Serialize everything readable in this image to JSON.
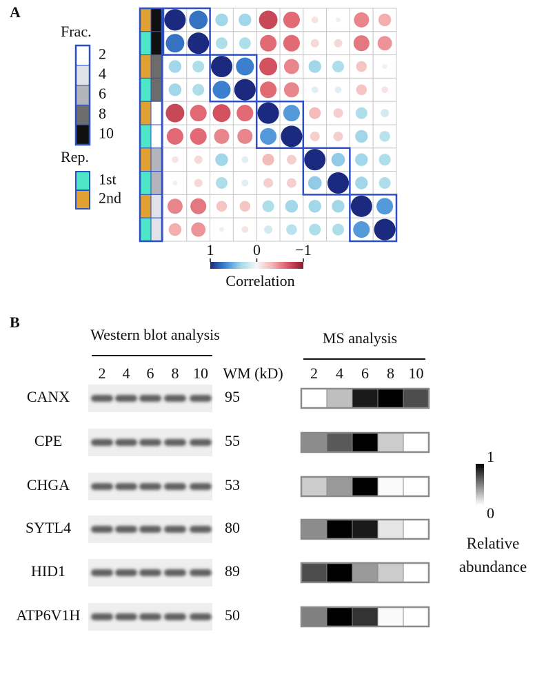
{
  "panels": {
    "a": "A",
    "b": "B"
  },
  "chart_data": [
    {
      "type": "corrplot",
      "matrix": [
        [
          1,
          0.75,
          0.35,
          0.35,
          -0.75,
          -0.6,
          -0.1,
          -0.05,
          -0.5,
          -0.35
        ],
        [
          0.75,
          1,
          0.3,
          0.3,
          -0.6,
          -0.6,
          -0.15,
          -0.15,
          -0.55,
          -0.45
        ],
        [
          0.35,
          0.3,
          1,
          0.7,
          -0.7,
          -0.5,
          0.35,
          0.3,
          -0.25,
          -0.05
        ],
        [
          0.35,
          0.3,
          0.7,
          1,
          -0.6,
          -0.5,
          0.1,
          0.1,
          -0.25,
          -0.1
        ],
        [
          -0.75,
          -0.6,
          -0.7,
          -0.6,
          1,
          0.6,
          -0.3,
          -0.2,
          0.3,
          0.15
        ],
        [
          -0.6,
          -0.6,
          -0.5,
          -0.5,
          0.6,
          1,
          -0.2,
          -0.2,
          0.35,
          0.25
        ],
        [
          -0.1,
          -0.15,
          0.35,
          0.1,
          -0.3,
          -0.2,
          1,
          0.4,
          0.35,
          0.3
        ],
        [
          -0.05,
          -0.15,
          0.3,
          0.1,
          -0.2,
          -0.2,
          0.4,
          1,
          0.35,
          0.3
        ],
        [
          -0.5,
          -0.55,
          -0.25,
          -0.25,
          0.3,
          0.35,
          0.35,
          0.35,
          1,
          0.6
        ],
        [
          -0.35,
          -0.45,
          -0.05,
          -0.1,
          0.15,
          0.25,
          0.3,
          0.3,
          0.6,
          1
        ]
      ],
      "row_fractions": [
        "10",
        "10",
        "8",
        "8",
        "2",
        "2",
        "6",
        "6",
        "4",
        "4"
      ],
      "row_replicates": [
        "2nd",
        "1st",
        "2nd",
        "1st",
        "2nd",
        "1st",
        "2nd",
        "1st",
        "2nd",
        "1st"
      ],
      "fraction_legend": {
        "title": "Frac.",
        "labels": [
          "2",
          "4",
          "6",
          "8",
          "10"
        ],
        "colors": [
          "#ffffff",
          "#e2e2ea",
          "#b4b4bc",
          "#6c6c6c",
          "#101010"
        ]
      },
      "replicate_legend": {
        "title": "Rep.",
        "labels": [
          "1st",
          "2nd"
        ],
        "colors": [
          "#4ee6c6",
          "#e0a032"
        ]
      },
      "colorbar": {
        "label": "Correlation",
        "lim": [
          1,
          -1
        ],
        "ticks": [
          1,
          0,
          {
            "value": -1,
            "label": "−1"
          }
        ],
        "colors": [
          "#1b2a7e",
          "#3f8ad8",
          "#a6dbe9",
          "#f7f7f7",
          "#f3b4b2",
          "#dc5765",
          "#881a2c"
        ]
      }
    },
    {
      "type": "heatmap",
      "title": "MS analysis",
      "x_categories": [
        "2",
        "4",
        "6",
        "8",
        "10"
      ],
      "values": [
        [
          0,
          0.25,
          0.9,
          1,
          0.7
        ],
        [
          0.45,
          0.65,
          1,
          0.2,
          0
        ],
        [
          0.2,
          0.4,
          1,
          0.02,
          0
        ],
        [
          0.45,
          1,
          0.9,
          0.1,
          0
        ],
        [
          0.7,
          1,
          0.4,
          0.2,
          0
        ],
        [
          0.5,
          1,
          0.8,
          0.02,
          0
        ]
      ],
      "colorbar": {
        "label": "Relative abundance",
        "lim": [
          0,
          1
        ],
        "ticks": [
          1,
          0
        ],
        "colors": [
          "#ffffff",
          "#000000"
        ]
      }
    }
  ],
  "western_blot": {
    "title": "Western blot analysis",
    "lanes": [
      "2",
      "4",
      "6",
      "8",
      "10"
    ],
    "wm_header": "WM (kD)",
    "proteins": [
      {
        "name": "CANX",
        "wm": "95"
      },
      {
        "name": "CPE",
        "wm": "55"
      },
      {
        "name": "CHGA",
        "wm": "53"
      },
      {
        "name": "SYTL4",
        "wm": "80"
      },
      {
        "name": "HID1",
        "wm": "89"
      },
      {
        "name": "ATP6V1H",
        "wm": "50"
      }
    ]
  }
}
